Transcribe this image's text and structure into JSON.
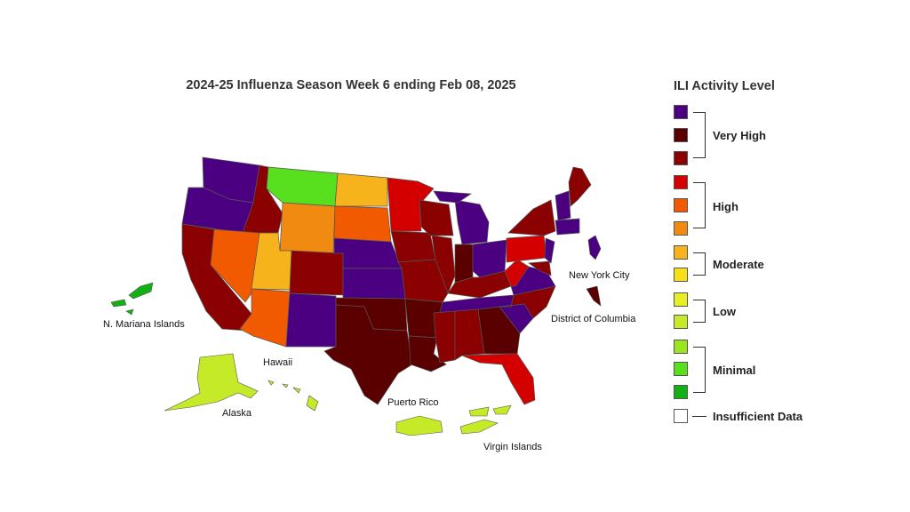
{
  "title": "2024-25 Influenza Season Week 6 ending Feb 08, 2025",
  "legend": {
    "title": "ILI Activity Level",
    "swatches": [
      "#4a0080",
      "#5a0000",
      "#8b0000",
      "#d40000",
      "#f25a00",
      "#f08a10",
      "#f7b31c",
      "#f7e017",
      "#e8ee26",
      "#c5ea28",
      "#9be51f",
      "#58e01f",
      "#12b012",
      "#ffffff"
    ],
    "groups": {
      "very_high": "Very High",
      "high": "High",
      "moderate": "Moderate",
      "low": "Low",
      "minimal": "Minimal",
      "insufficient": "Insufficient Data"
    }
  },
  "labels": {
    "nmi": "N. Mariana Islands",
    "hawaii": "Hawaii",
    "alaska": "Alaska",
    "puerto_rico": "Puerto Rico",
    "virgin_islands": "Virgin Islands",
    "nyc": "New York City",
    "dc": "District of Columbia"
  },
  "colors": {
    "veryhigh_purple": "#4a0080",
    "veryhigh_dark": "#5a0000",
    "veryhigh": "#8b0000",
    "high_red": "#d40000",
    "high_orange": "#f25a00",
    "high_light": "#f08a10",
    "moderate": "#f7b31c",
    "low_yellowgreen": "#c5ea28",
    "minimal_green": "#58e01f",
    "minimal_dark": "#12b012"
  }
}
